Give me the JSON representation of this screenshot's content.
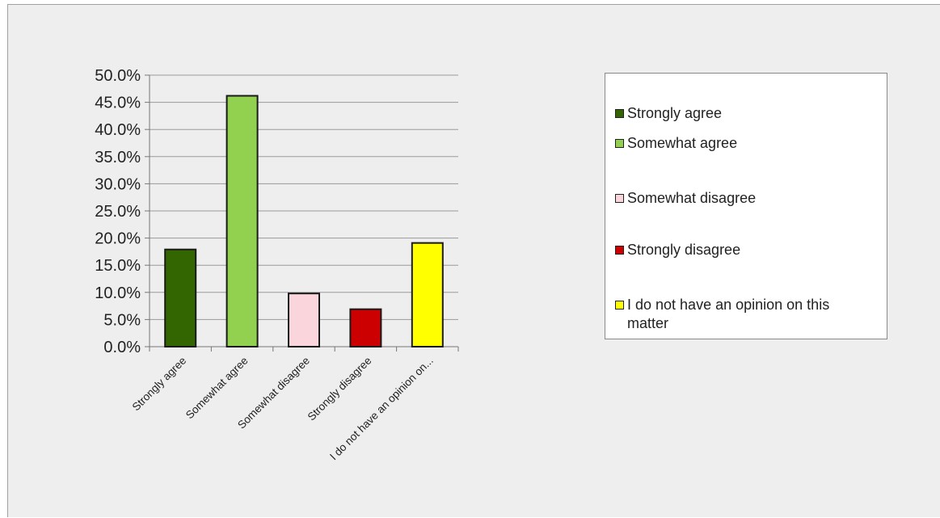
{
  "chart_data": {
    "type": "bar",
    "categories": [
      "Strongly agree",
      "Somewhat agree",
      "Somewhat disagree",
      "Strongly disagree",
      "I do not have an opinion on..."
    ],
    "values": [
      17.9,
      46.2,
      9.8,
      6.9,
      19.1
    ],
    "colors": [
      "#336600",
      "#92d050",
      "#fbd5dc",
      "#cc0000",
      "#ffff00"
    ],
    "yticks": [
      "0.0%",
      "5.0%",
      "10.0%",
      "15.0%",
      "20.0%",
      "25.0%",
      "30.0%",
      "35.0%",
      "40.0%",
      "45.0%",
      "50.0%"
    ],
    "ylim": [
      0,
      50
    ],
    "grid": true,
    "legend_position": "right",
    "legend": [
      "Strongly agree",
      "Somewhat agree",
      "Somewhat disagree",
      "Strongly disagree",
      "I do not have an opinion on this matter"
    ]
  }
}
